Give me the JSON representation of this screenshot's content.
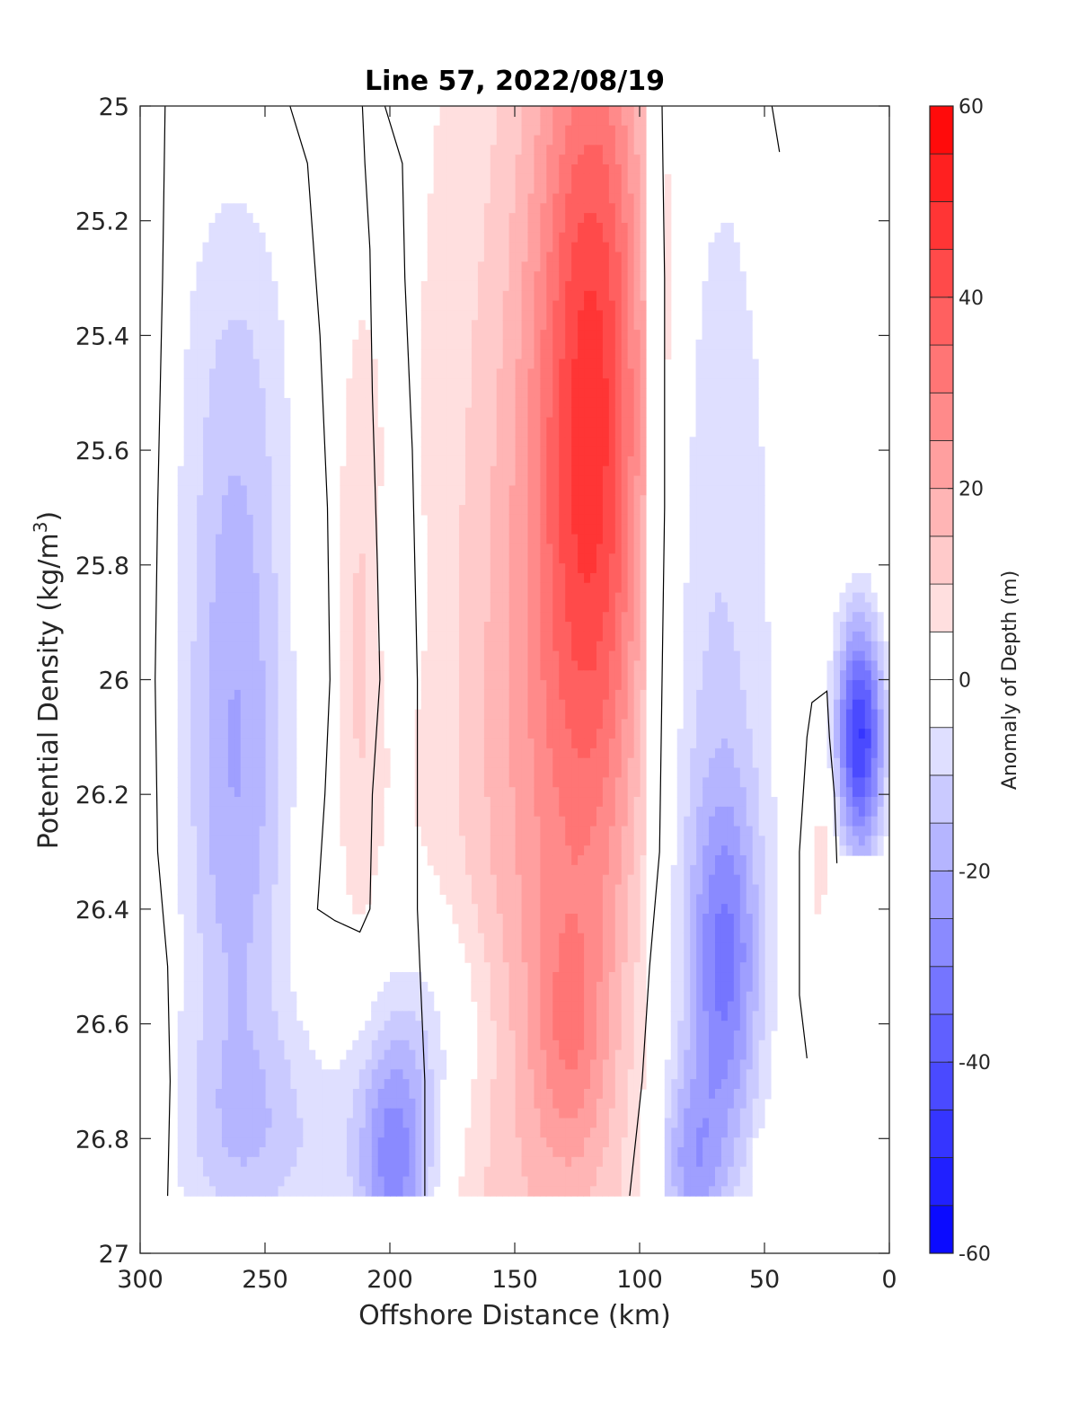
{
  "chart_data": {
    "type": "heatmap",
    "title": "Line 57, 2022/08/19",
    "xlabel": "Offshore Distance (km)",
    "ylabel_main": "Potential Density (kg/m",
    "ylabel_sup": "3",
    "ylabel_close": ")",
    "xlim": [
      300,
      0
    ],
    "ylim": [
      25,
      27
    ],
    "x_reversed": true,
    "y_reversed": true,
    "xticks": [
      300,
      250,
      200,
      150,
      100,
      50,
      0
    ],
    "xtick_labels": [
      "300",
      "250",
      "200",
      "150",
      "100",
      "50",
      "0"
    ],
    "yticks": [
      25,
      25.2,
      25.4,
      25.6,
      25.8,
      26,
      26.2,
      26.4,
      26.6,
      26.8,
      27
    ],
    "ytick_labels": [
      "25",
      "25.2",
      "25.4",
      "25.6",
      "25.8",
      "26",
      "26.2",
      "26.4",
      "26.6",
      "26.8",
      "27"
    ],
    "colorbar": {
      "label": "Anomaly of Depth (m)",
      "range": [
        -60,
        60
      ],
      "levels": [
        -60,
        -55,
        -50,
        -45,
        -40,
        -35,
        -30,
        -25,
        -20,
        -15,
        -10,
        -5,
        0,
        5,
        10,
        15,
        20,
        25,
        30,
        35,
        40,
        45,
        50,
        55,
        60
      ],
      "ticks": [
        60,
        40,
        20,
        0,
        -20,
        -40,
        -60
      ],
      "tick_labels": [
        "60",
        "40",
        "20",
        "0",
        "-20",
        "-40",
        "-60"
      ],
      "colormap": "blue-white-red",
      "low_color": "#0000ff",
      "mid_color": "#ffffff",
      "high_color": "#ff0000"
    },
    "data_extent": {
      "density_max": 26.9,
      "note_free": true
    },
    "zero_contour_lines": [
      {
        "name": "z1",
        "points": [
          [
            290,
            25.0
          ],
          [
            291,
            25.3
          ],
          [
            293,
            25.7
          ],
          [
            294,
            26.0
          ],
          [
            293,
            26.3
          ],
          [
            289,
            26.5
          ],
          [
            288,
            26.7
          ],
          [
            289,
            26.9
          ]
        ]
      },
      {
        "name": "z2",
        "points": [
          [
            240,
            25.0
          ],
          [
            233,
            25.1
          ],
          [
            228,
            25.4
          ],
          [
            225,
            25.7
          ],
          [
            224,
            26.0
          ],
          [
            226,
            26.2
          ],
          [
            229,
            26.4
          ],
          [
            222,
            26.42
          ],
          [
            212,
            26.44
          ],
          [
            208,
            26.4
          ],
          [
            207,
            26.2
          ],
          [
            204,
            26.0
          ],
          [
            205,
            25.8
          ],
          [
            207,
            25.5
          ],
          [
            208,
            25.25
          ],
          [
            210,
            25.1
          ],
          [
            211,
            25.0
          ]
        ]
      },
      {
        "name": "z3",
        "points": [
          [
            202,
            25.0
          ],
          [
            195,
            25.1
          ],
          [
            194,
            25.3
          ],
          [
            191,
            25.6
          ],
          [
            189,
            26.0
          ],
          [
            189,
            26.4
          ],
          [
            186,
            26.7
          ],
          [
            186,
            26.9
          ]
        ]
      },
      {
        "name": "z4",
        "points": [
          [
            91,
            25.0
          ],
          [
            90,
            25.3
          ],
          [
            90,
            25.7
          ],
          [
            91,
            26.0
          ],
          [
            92,
            26.3
          ],
          [
            96,
            26.5
          ],
          [
            99,
            26.7
          ],
          [
            104,
            26.9
          ]
        ]
      },
      {
        "name": "z5",
        "points": [
          [
            47,
            25.0
          ],
          [
            44,
            25.08
          ]
        ]
      },
      {
        "name": "z6",
        "points": [
          [
            33,
            26.66
          ],
          [
            36,
            26.55
          ],
          [
            36,
            26.3
          ],
          [
            33,
            26.1
          ],
          [
            31,
            26.04
          ],
          [
            25,
            26.02
          ],
          [
            24,
            26.1
          ],
          [
            22,
            26.2
          ],
          [
            21,
            26.32
          ]
        ]
      }
    ],
    "anomaly_features": [
      {
        "name": "blue-band-west",
        "x": 265,
        "y": 26.15,
        "peak": -30
      },
      {
        "name": "blue-patch-200",
        "x": 198,
        "y": 26.85,
        "peak": -33
      },
      {
        "name": "red-band-center",
        "x": 118,
        "y": 25.5,
        "peak": 40
      },
      {
        "name": "red-patch-deep",
        "x": 128,
        "y": 26.63,
        "peak": 34
      },
      {
        "name": "blue-band-east",
        "x": 65,
        "y": 26.5,
        "peak": -32
      },
      {
        "name": "blue-patch-east-deep",
        "x": 80,
        "y": 26.85,
        "peak": -30
      },
      {
        "name": "blue-patch-nearshore",
        "x": 12,
        "y": 26.1,
        "peak": -52
      }
    ]
  }
}
